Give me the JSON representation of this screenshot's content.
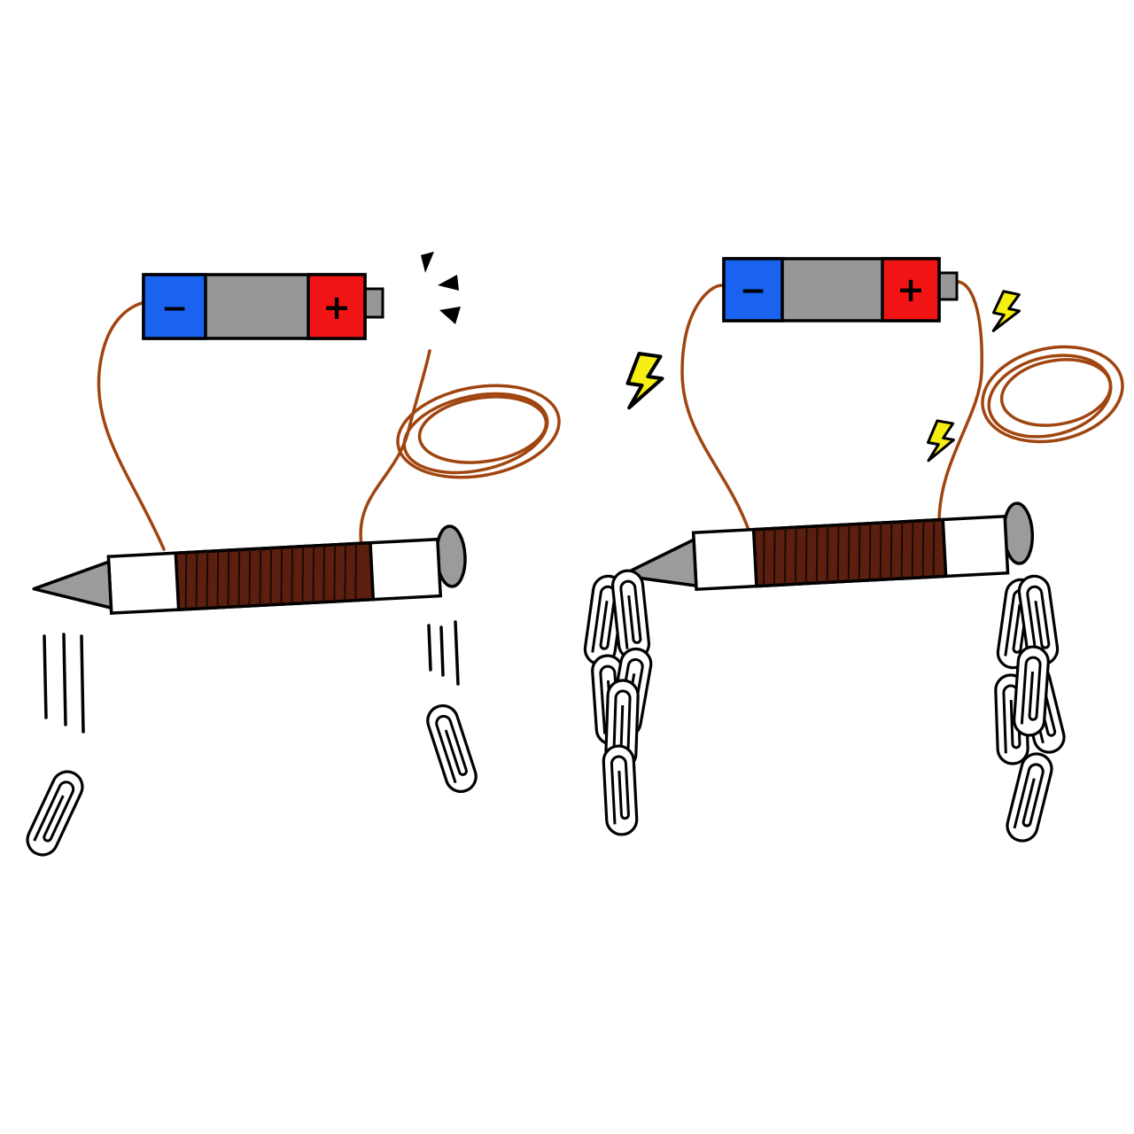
{
  "figure": {
    "description_panels": [
      "circuit-open",
      "circuit-closed"
    ],
    "colors": {
      "background": "#ffffff",
      "wire": "#a0450f",
      "coil": "#5a1f0f",
      "coil_line": "#1c0a06",
      "battery_negative": "#1a63f0",
      "battery_positive": "#f01414",
      "battery_body": "#979797",
      "nail_metal": "#9b9b9b",
      "spark": "#f5ee12",
      "outline": "#000000",
      "paperclip_fill": "#ffffff"
    }
  },
  "left_panel": {
    "battery": {
      "negative_label": "−",
      "positive_label": "+"
    },
    "state": "open",
    "paperclips_falling": 2
  },
  "right_panel": {
    "battery": {
      "negative_label": "−",
      "positive_label": "+"
    },
    "state": "closed",
    "paperclips_attached_tip": 6,
    "paperclips_attached_head": 6,
    "sparks": 3
  }
}
